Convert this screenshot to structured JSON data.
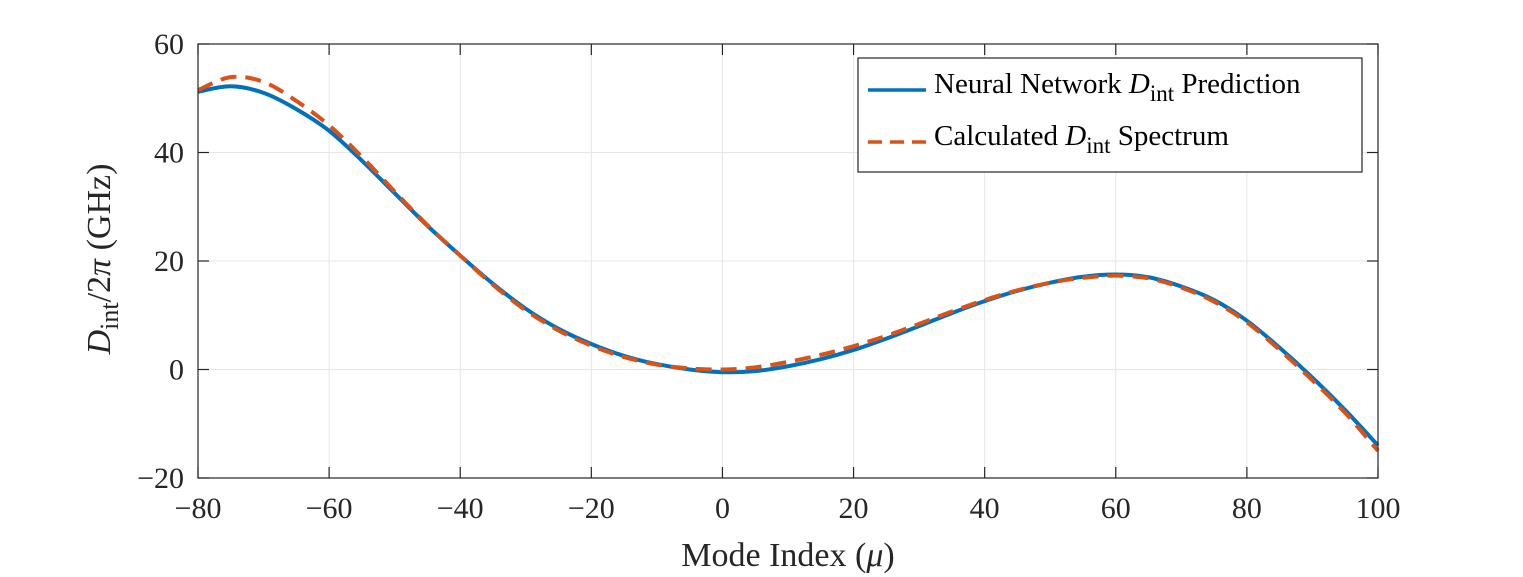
{
  "chart_data": {
    "type": "line",
    "title": "",
    "xlabel_main": "Mode Index (",
    "xlabel_symbol": "μ",
    "xlabel_close": ")",
    "ylabel_var": "D",
    "ylabel_sub": "int",
    "ylabel_rest": "/2",
    "ylabel_pi": "π",
    "ylabel_unit": " (GHz)",
    "xlim": [
      -80,
      100
    ],
    "ylim": [
      -20,
      60
    ],
    "xticks": [
      -80,
      -60,
      -40,
      -20,
      0,
      20,
      40,
      60,
      80,
      100
    ],
    "yticks": [
      -20,
      0,
      20,
      40,
      60
    ],
    "xtick_labels": [
      "−80",
      "−60",
      "−40",
      "−20",
      "0",
      "20",
      "40",
      "60",
      "80",
      "100"
    ],
    "ytick_labels": [
      "−20",
      "0",
      "20",
      "40",
      "60"
    ],
    "grid": true,
    "legend_position": "top-right",
    "series": [
      {
        "name": "Neural Network D_int Prediction",
        "legend_pre": "Neural Network ",
        "legend_var": "D",
        "legend_sub": "int",
        "legend_post": " Prediction",
        "color": "#0072BD",
        "style": "solid",
        "x": [
          -80,
          -75,
          -70,
          -65,
          -60,
          -55,
          -50,
          -45,
          -40,
          -35,
          -30,
          -25,
          -20,
          -15,
          -10,
          -5,
          0,
          5,
          10,
          15,
          20,
          25,
          30,
          35,
          40,
          45,
          50,
          55,
          60,
          65,
          70,
          75,
          80,
          85,
          90,
          95,
          100
        ],
        "y": [
          51.2,
          52.2,
          51.0,
          48.0,
          44.0,
          38.5,
          32.5,
          26.5,
          21.0,
          15.8,
          11.2,
          7.5,
          4.7,
          2.5,
          1.0,
          0.0,
          -0.5,
          -0.3,
          0.6,
          1.9,
          3.6,
          5.7,
          8.0,
          10.4,
          12.6,
          14.5,
          16.0,
          17.1,
          17.5,
          17.0,
          15.3,
          12.8,
          9.0,
          4.0,
          -1.5,
          -7.5,
          -14.0
        ]
      },
      {
        "name": "Calculated D_int Spectrum",
        "legend_pre": "Calculated ",
        "legend_var": "D",
        "legend_sub": "int",
        "legend_post": " Spectrum",
        "color": "#D95319",
        "style": "dashed",
        "x": [
          -80,
          -75,
          -70,
          -65,
          -60,
          -55,
          -50,
          -45,
          -40,
          -35,
          -30,
          -25,
          -20,
          -15,
          -10,
          -5,
          0,
          5,
          10,
          15,
          20,
          25,
          30,
          35,
          40,
          45,
          50,
          55,
          60,
          65,
          70,
          75,
          80,
          85,
          90,
          95,
          100
        ],
        "y": [
          51.5,
          53.9,
          53.0,
          49.5,
          45.0,
          39.2,
          32.8,
          26.6,
          21.0,
          15.6,
          10.9,
          7.2,
          4.4,
          2.3,
          0.9,
          0.2,
          0.0,
          0.4,
          1.4,
          2.7,
          4.3,
          6.2,
          8.4,
          10.7,
          12.8,
          14.6,
          16.0,
          16.9,
          17.3,
          16.8,
          15.1,
          12.5,
          8.7,
          3.6,
          -2.0,
          -8.0,
          -15.0
        ]
      }
    ]
  }
}
